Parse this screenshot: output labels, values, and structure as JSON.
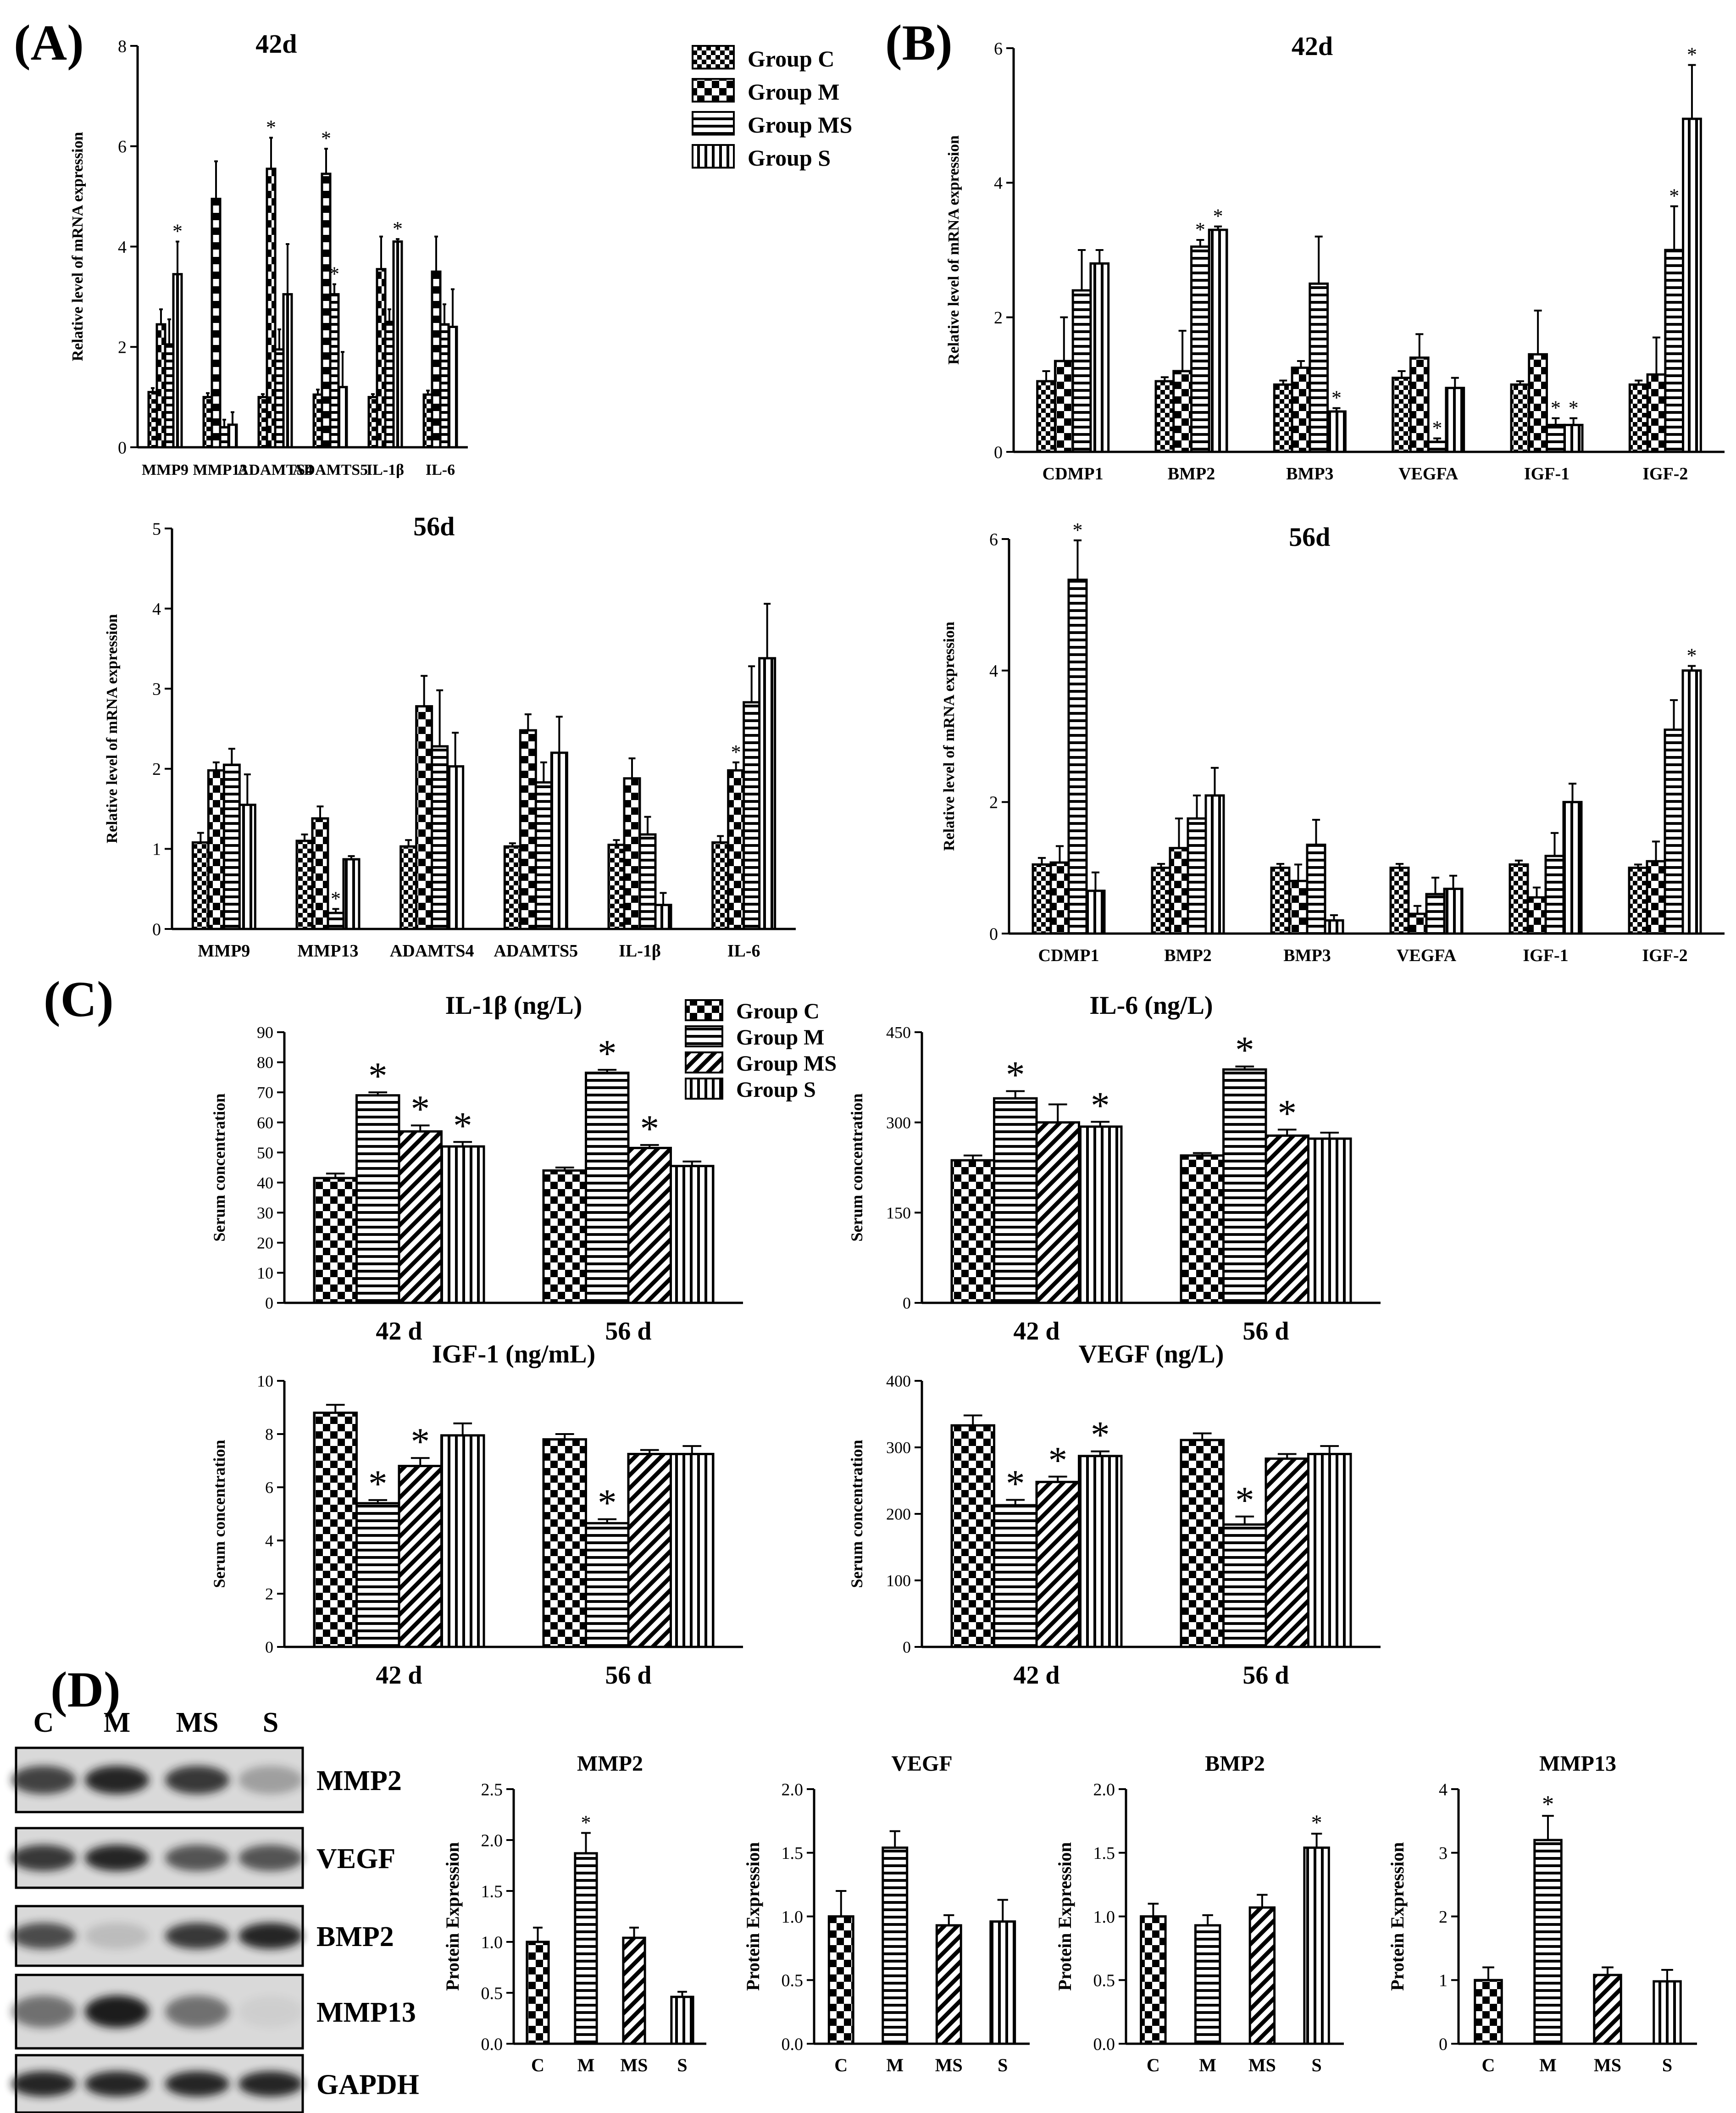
{
  "panel_letters": {
    "A": "(A)",
    "B": "(B)",
    "C": "(C)",
    "D": "(D)"
  },
  "colors": {
    "ink": "#000000",
    "background": "#ffffff",
    "blot_bg": "#d9d9d9",
    "blot_band": "#1a1a1a"
  },
  "patterns": [
    "checker-small",
    "checker-large",
    "horizontal-stripes",
    "vertical-stripes",
    "diagonal-stripes"
  ],
  "legends": {
    "ab": [
      "Group C",
      "Group M",
      "Group MS",
      "Group S"
    ],
    "c": [
      "Group C",
      "Group M",
      "Group MS",
      "Group S"
    ]
  },
  "blot": {
    "lanes": [
      "C",
      "M",
      "MS",
      "S"
    ],
    "rows": [
      {
        "label": "MMP2",
        "intensity": [
          0.8,
          0.95,
          0.85,
          0.3
        ]
      },
      {
        "label": "VEGF",
        "intensity": [
          0.85,
          0.95,
          0.7,
          0.7
        ]
      },
      {
        "label": "BMP2",
        "intensity": [
          0.75,
          0.15,
          0.85,
          0.95
        ]
      },
      {
        "label": "MMP13",
        "intensity": [
          0.55,
          1.0,
          0.55,
          0.05
        ]
      },
      {
        "label": "GAPDH",
        "intensity": [
          0.95,
          0.95,
          0.95,
          0.95
        ]
      }
    ]
  },
  "chart_data": [
    {
      "id": "A42",
      "type": "bar",
      "title": "42d",
      "ylabel": "Relative level of mRNA expression",
      "ylim": [
        0,
        8
      ],
      "yticks": [
        0,
        2,
        4,
        6,
        8
      ],
      "categories": [
        "MMP9",
        "MMP13",
        "ADAMTS4",
        "ADAMTS5",
        "IL-1β",
        "IL-6"
      ],
      "series": [
        {
          "name": "Group C",
          "values": [
            1.1,
            1.0,
            1.0,
            1.05,
            1.0,
            1.05
          ],
          "errors": [
            0.08,
            0.08,
            0.06,
            0.1,
            0.06,
            0.08
          ],
          "sig": [
            0,
            0,
            0,
            0,
            0,
            0
          ]
        },
        {
          "name": "Group M",
          "values": [
            2.45,
            4.95,
            5.55,
            5.45,
            3.55,
            3.5
          ],
          "errors": [
            0.3,
            0.75,
            0.62,
            0.5,
            0.65,
            0.7
          ],
          "sig": [
            0,
            0,
            1,
            1,
            0,
            0
          ]
        },
        {
          "name": "Group MS",
          "values": [
            2.05,
            0.4,
            1.95,
            3.05,
            2.5,
            2.45
          ],
          "errors": [
            0.5,
            0.15,
            0.4,
            0.2,
            0.25,
            0.4
          ],
          "sig": [
            0,
            0,
            0,
            1,
            0,
            0
          ]
        },
        {
          "name": "Group S",
          "values": [
            3.45,
            0.45,
            3.05,
            1.2,
            4.1,
            2.4
          ],
          "errors": [
            0.65,
            0.25,
            1.0,
            0.7,
            0.05,
            0.75
          ],
          "sig": [
            1,
            0,
            0,
            0,
            1,
            0
          ]
        }
      ]
    },
    {
      "id": "B42",
      "type": "bar",
      "title": "42d",
      "ylabel": "Relative level of mRNA expression",
      "ylim": [
        0,
        6
      ],
      "yticks": [
        0,
        2,
        4,
        6
      ],
      "categories": [
        "CDMP1",
        "BMP2",
        "BMP3",
        "VEGFA",
        "IGF-1",
        "IGF-2"
      ],
      "series": [
        {
          "name": "Group C",
          "values": [
            1.05,
            1.05,
            1.0,
            1.1,
            1.0,
            1.0
          ],
          "errors": [
            0.15,
            0.06,
            0.06,
            0.1,
            0.05,
            0.06
          ],
          "sig": [
            0,
            0,
            0,
            0,
            0,
            0
          ]
        },
        {
          "name": "Group M",
          "values": [
            1.35,
            1.2,
            1.25,
            1.4,
            1.45,
            1.15
          ],
          "errors": [
            0.65,
            0.6,
            0.1,
            0.35,
            0.65,
            0.55
          ],
          "sig": [
            0,
            0,
            0,
            0,
            0,
            0
          ]
        },
        {
          "name": "Group MS",
          "values": [
            2.4,
            3.05,
            2.5,
            0.15,
            0.4,
            3.0
          ],
          "errors": [
            0.6,
            0.1,
            0.7,
            0.05,
            0.1,
            0.65
          ],
          "sig": [
            0,
            1,
            0,
            1,
            1,
            1
          ]
        },
        {
          "name": "Group S",
          "values": [
            2.8,
            3.3,
            0.6,
            0.95,
            0.4,
            4.95
          ],
          "errors": [
            0.2,
            0.05,
            0.05,
            0.15,
            0.1,
            0.8
          ],
          "sig": [
            0,
            1,
            1,
            0,
            1,
            1
          ]
        }
      ]
    },
    {
      "id": "A56",
      "type": "bar",
      "title": "56d",
      "ylabel": "Relative level of mRNA expression",
      "ylim": [
        0,
        5
      ],
      "yticks": [
        0,
        1,
        2,
        3,
        4,
        5
      ],
      "categories": [
        "MMP9",
        "MMP13",
        "ADAMTS4",
        "ADAMTS5",
        "IL-1β",
        "IL-6"
      ],
      "series": [
        {
          "name": "Group C",
          "values": [
            1.08,
            1.1,
            1.03,
            1.03,
            1.05,
            1.08
          ],
          "errors": [
            0.12,
            0.08,
            0.08,
            0.04,
            0.06,
            0.08
          ],
          "sig": [
            0,
            0,
            0,
            0,
            0,
            0
          ]
        },
        {
          "name": "Group M",
          "values": [
            1.98,
            1.38,
            2.78,
            2.48,
            1.88,
            1.98
          ],
          "errors": [
            0.1,
            0.15,
            0.38,
            0.2,
            0.25,
            0.1
          ],
          "sig": [
            0,
            0,
            0,
            0,
            0,
            1
          ]
        },
        {
          "name": "Group MS",
          "values": [
            2.05,
            0.2,
            2.28,
            1.83,
            1.18,
            2.83
          ],
          "errors": [
            0.2,
            0.05,
            0.7,
            0.25,
            0.22,
            0.45
          ],
          "sig": [
            0,
            1,
            0,
            0,
            0,
            0
          ]
        },
        {
          "name": "Group S",
          "values": [
            1.55,
            0.87,
            2.03,
            2.2,
            0.3,
            3.38
          ],
          "errors": [
            0.38,
            0.04,
            0.42,
            0.45,
            0.15,
            0.68
          ],
          "sig": [
            0,
            0,
            0,
            0,
            0,
            0
          ]
        }
      ]
    },
    {
      "id": "B56",
      "type": "bar",
      "title": "56d",
      "ylabel": "Relative level of mRNA expression",
      "ylim": [
        0,
        6
      ],
      "yticks": [
        0,
        2,
        4,
        6
      ],
      "categories": [
        "CDMP1",
        "BMP2",
        "BMP3",
        "VEGFA",
        "IGF-1",
        "IGF-2"
      ],
      "series": [
        {
          "name": "Group C",
          "values": [
            1.05,
            1.0,
            1.0,
            1.0,
            1.05,
            1.0
          ],
          "errors": [
            0.1,
            0.06,
            0.06,
            0.06,
            0.06,
            0.05
          ],
          "sig": [
            0,
            0,
            0,
            0,
            0,
            0
          ]
        },
        {
          "name": "Group M",
          "values": [
            1.08,
            1.3,
            0.8,
            0.3,
            0.55,
            1.1
          ],
          "errors": [
            0.25,
            0.45,
            0.25,
            0.12,
            0.15,
            0.3
          ],
          "sig": [
            0,
            0,
            0,
            0,
            0,
            0
          ]
        },
        {
          "name": "Group MS",
          "values": [
            5.38,
            1.75,
            1.35,
            0.6,
            1.18,
            3.1
          ],
          "errors": [
            0.6,
            0.35,
            0.38,
            0.25,
            0.35,
            0.45
          ],
          "sig": [
            1,
            0,
            0,
            0,
            0,
            0
          ]
        },
        {
          "name": "Group S",
          "values": [
            0.65,
            2.1,
            0.2,
            0.68,
            2.0,
            4.0
          ],
          "errors": [
            0.28,
            0.42,
            0.08,
            0.2,
            0.28,
            0.07
          ],
          "sig": [
            0,
            0,
            0,
            0,
            0,
            1
          ]
        }
      ]
    },
    {
      "id": "C1",
      "type": "bar",
      "title": "IL-1β (ng/L)",
      "ylabel": "Serum concentration",
      "ylim": [
        0,
        90
      ],
      "yticks": [
        0,
        10,
        20,
        30,
        40,
        50,
        60,
        70,
        80,
        90
      ],
      "categories": [
        "42 d",
        "56 d"
      ],
      "series": [
        {
          "name": "Group C",
          "values": [
            41.5,
            44.0
          ],
          "errors": [
            1.5,
            1.0
          ],
          "sig": [
            0,
            0
          ]
        },
        {
          "name": "Group M",
          "values": [
            69.0,
            76.5
          ],
          "errors": [
            1.0,
            1.0
          ],
          "sig": [
            1,
            1
          ]
        },
        {
          "name": "Group MS",
          "values": [
            57.0,
            51.5
          ],
          "errors": [
            2.0,
            1.0
          ],
          "sig": [
            1,
            1
          ]
        },
        {
          "name": "Group S",
          "values": [
            52.0,
            45.5
          ],
          "errors": [
            1.5,
            1.5
          ],
          "sig": [
            1,
            0
          ]
        }
      ]
    },
    {
      "id": "C2",
      "type": "bar",
      "title": "IL-6 (ng/L)",
      "ylabel": "Serum concentration",
      "ylim": [
        0,
        450
      ],
      "yticks": [
        0,
        150,
        300,
        450
      ],
      "categories": [
        "42 d",
        "56 d"
      ],
      "series": [
        {
          "name": "Group C",
          "values": [
            237,
            245
          ],
          "errors": [
            8,
            4
          ],
          "sig": [
            0,
            0
          ]
        },
        {
          "name": "Group M",
          "values": [
            340,
            388
          ],
          "errors": [
            12,
            5
          ],
          "sig": [
            1,
            1
          ]
        },
        {
          "name": "Group MS",
          "values": [
            300,
            278
          ],
          "errors": [
            30,
            10
          ],
          "sig": [
            0,
            1
          ]
        },
        {
          "name": "Group S",
          "values": [
            293,
            273
          ],
          "errors": [
            8,
            10
          ],
          "sig": [
            1,
            0
          ]
        }
      ]
    },
    {
      "id": "C3",
      "type": "bar",
      "title": "IGF-1 (ng/mL)",
      "ylabel": "Serum concentration",
      "ylim": [
        0,
        10
      ],
      "yticks": [
        0,
        2,
        4,
        6,
        8,
        10
      ],
      "categories": [
        "42 d",
        "56 d"
      ],
      "series": [
        {
          "name": "Group C",
          "values": [
            8.8,
            7.8
          ],
          "errors": [
            0.3,
            0.2
          ],
          "sig": [
            0,
            0
          ]
        },
        {
          "name": "Group M",
          "values": [
            5.4,
            4.65
          ],
          "errors": [
            0.12,
            0.15
          ],
          "sig": [
            1,
            1
          ]
        },
        {
          "name": "Group MS",
          "values": [
            6.8,
            7.25
          ],
          "errors": [
            0.3,
            0.15
          ],
          "sig": [
            1,
            0
          ]
        },
        {
          "name": "Group S",
          "values": [
            7.95,
            7.25
          ],
          "errors": [
            0.45,
            0.3
          ],
          "sig": [
            0,
            0
          ]
        }
      ]
    },
    {
      "id": "C4",
      "type": "bar",
      "title": "VEGF (ng/L)",
      "ylabel": "Serum concentration",
      "ylim": [
        0,
        400
      ],
      "yticks": [
        0,
        100,
        200,
        300,
        400
      ],
      "categories": [
        "42 d",
        "56 d"
      ],
      "series": [
        {
          "name": "Group C",
          "values": [
            333,
            311
          ],
          "errors": [
            15,
            10
          ],
          "sig": [
            0,
            0
          ]
        },
        {
          "name": "Group M",
          "values": [
            213,
            184
          ],
          "errors": [
            8,
            12
          ],
          "sig": [
            1,
            1
          ]
        },
        {
          "name": "Group MS",
          "values": [
            248,
            283
          ],
          "errors": [
            8,
            7
          ],
          "sig": [
            1,
            0
          ]
        },
        {
          "name": "Group S",
          "values": [
            287,
            290
          ],
          "errors": [
            7,
            12
          ],
          "sig": [
            1,
            0
          ]
        }
      ]
    },
    {
      "id": "D1",
      "type": "bar",
      "title": "MMP2",
      "ylabel": "Protein Expression",
      "ylim": [
        0,
        2.5
      ],
      "yticks": [
        "0.0",
        "0.5",
        "1.0",
        "1.5",
        "2.0",
        "2.5"
      ],
      "categories": [
        "C",
        "M",
        "MS",
        "S"
      ],
      "values": [
        1.0,
        1.87,
        1.04,
        0.46
      ],
      "errors": [
        0.14,
        0.2,
        0.1,
        0.05
      ],
      "sig": [
        0,
        1,
        0,
        0
      ]
    },
    {
      "id": "D2",
      "type": "bar",
      "title": "VEGF",
      "ylabel": "Protein Expression",
      "ylim": [
        0,
        2.0
      ],
      "yticks": [
        "0.0",
        "0.5",
        "1.0",
        "1.5",
        "2.0"
      ],
      "categories": [
        "C",
        "M",
        "MS",
        "S"
      ],
      "values": [
        1.0,
        1.54,
        0.93,
        0.96
      ],
      "errors": [
        0.2,
        0.13,
        0.08,
        0.17
      ],
      "sig": [
        0,
        0,
        0,
        0
      ]
    },
    {
      "id": "D3",
      "type": "bar",
      "title": "BMP2",
      "ylabel": "Protein Expression",
      "ylim": [
        0,
        2.0
      ],
      "yticks": [
        "0.0",
        "0.5",
        "1.0",
        "1.5",
        "2.0"
      ],
      "categories": [
        "C",
        "M",
        "MS",
        "S"
      ],
      "values": [
        1.0,
        0.93,
        1.07,
        1.54
      ],
      "errors": [
        0.1,
        0.08,
        0.1,
        0.11
      ],
      "sig": [
        0,
        0,
        0,
        1
      ]
    },
    {
      "id": "D4",
      "type": "bar",
      "title": "MMP13",
      "ylabel": "Protein Expression",
      "ylim": [
        0,
        4
      ],
      "yticks": [
        0,
        1,
        2,
        3,
        4
      ],
      "categories": [
        "C",
        "M",
        "MS",
        "S"
      ],
      "values": [
        1.0,
        3.2,
        1.08,
        0.98
      ],
      "errors": [
        0.2,
        0.38,
        0.12,
        0.18
      ],
      "sig": [
        0,
        1,
        0,
        0
      ]
    }
  ]
}
